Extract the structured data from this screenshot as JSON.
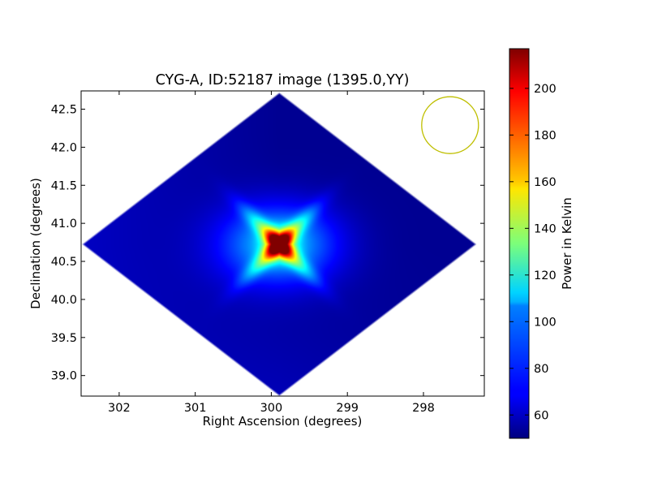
{
  "chart_data": {
    "type": "heatmap",
    "title": "CYG-A, ID:52187 image (1395.0,YY)",
    "xlabel": "Right Ascension (degrees)",
    "ylabel": "Declination (degrees)",
    "colorbar_label": "Power in Kelvin",
    "colormap": "jet",
    "x_axis": {
      "range": [
        302.5,
        297.2
      ],
      "inverted": true,
      "ticks": [
        302,
        301,
        300,
        299,
        298
      ],
      "tick_labels": [
        "302",
        "301",
        "300",
        "299",
        "298"
      ]
    },
    "y_axis": {
      "range": [
        38.73,
        42.74
      ],
      "ticks": [
        39.0,
        39.5,
        40.0,
        40.5,
        41.0,
        41.5,
        42.0,
        42.5
      ],
      "tick_labels": [
        "39.0",
        "39.5",
        "40.0",
        "40.5",
        "41.0",
        "41.5",
        "42.0",
        "42.5"
      ]
    },
    "colorbar": {
      "range": [
        50,
        217
      ],
      "ticks": [
        60,
        80,
        100,
        120,
        140,
        160,
        180,
        200
      ],
      "tick_labels": [
        "60",
        "80",
        "100",
        "120",
        "140",
        "160",
        "180",
        "200"
      ]
    },
    "field": {
      "center_ra": 299.9,
      "center_dec": 40.73,
      "half_width_ra": 2.6,
      "half_width_dec": 2.0,
      "peak_kelvin": 217,
      "background_kelvin": 53
    },
    "beam": {
      "center_ra": 297.65,
      "center_dec": 42.29,
      "color": "#bfbf00"
    },
    "grid": false,
    "background_color": "#ffffff"
  }
}
